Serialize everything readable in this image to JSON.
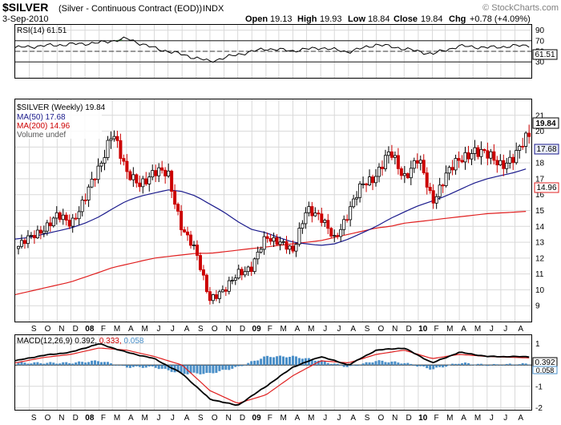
{
  "header": {
    "symbol": "$SILVER",
    "name": "(Silver - Continuous Contract (EOD))",
    "exchange": "INDX",
    "date": "3-Sep-2010",
    "watermark": "© StockCharts.com",
    "open_label": "Open",
    "open": "19.13",
    "high_label": "High",
    "high": "19.93",
    "low_label": "Low",
    "low": "18.84",
    "close_label": "Close",
    "close": "19.84",
    "chg_label": "Chg",
    "chg": "+0.78 (+4.09%)"
  },
  "rsi": {
    "label": "RSI(14) 61.51",
    "current_tag": "61.51",
    "ticks": [
      "90",
      "70",
      "50",
      "30"
    ]
  },
  "price": {
    "legend": {
      "main": "$SILVER (Weekly) 19.84",
      "ma50": "MA(50) 17.68",
      "ma200": "MA(200) 14.96",
      "volume": "Volume undef"
    },
    "tags": {
      "close": "19.84",
      "ma50": "17.68",
      "ma200": "14.96"
    },
    "x_ticks": [
      "S",
      "O",
      "N",
      "D",
      "08",
      "F",
      "M",
      "A",
      "M",
      "J",
      "J",
      "A",
      "S",
      "O",
      "N",
      "D",
      "09",
      "F",
      "M",
      "A",
      "M",
      "J",
      "J",
      "A",
      "S",
      "O",
      "N",
      "D",
      "10",
      "F",
      "M",
      "A",
      "M",
      "J",
      "J",
      "A"
    ]
  },
  "macd": {
    "label_main": "MACD(12,26,9) 0.392,",
    "label_signal": "0.333,",
    "label_hist": "0.058",
    "tags": {
      "macd": "0.392",
      "hist": "0.058"
    },
    "ticks": [
      "1",
      "0",
      "-1",
      "-2"
    ]
  },
  "colors": {
    "up": "#000000",
    "down": "#cc0000",
    "ma50": "#1a1a8c",
    "ma200": "#e02020",
    "rsi_overbought_fill": "#4f8a4f",
    "hist": "#4a8fc8",
    "signal": "#e02020",
    "macd_line": "#000000",
    "grid": "#d9d9d9",
    "tag_ma50_bg": "#e8ecf8"
  },
  "chart_data": [
    {
      "type": "line",
      "title": "RSI(14) 61.51",
      "ylim": [
        0,
        100
      ],
      "yticks": [
        30,
        50,
        70,
        90
      ],
      "x": [
        "2007-08",
        "2007-11",
        "2008-02",
        "2008-04",
        "2008-06",
        "2008-08",
        "2008-10",
        "2008-12",
        "2009-02",
        "2009-04",
        "2009-06",
        "2009-08",
        "2009-10",
        "2009-12",
        "2010-02",
        "2010-04",
        "2010-06",
        "2010-09"
      ],
      "series": [
        {
          "name": "RSI(14)",
          "values": [
            57,
            62,
            66,
            74,
            56,
            44,
            31,
            44,
            55,
            51,
            57,
            49,
            63,
            55,
            45,
            60,
            57,
            61.51
          ]
        }
      ]
    },
    {
      "type": "line",
      "title": "$SILVER (Weekly) 19.84",
      "ylim": [
        8,
        22
      ],
      "yticks": [
        9,
        10,
        11,
        12,
        13,
        14,
        15,
        16,
        17,
        18,
        19,
        20,
        21
      ],
      "x": [
        "2007-08",
        "2007-09",
        "2007-10",
        "2007-11",
        "2007-12",
        "2008-01",
        "2008-02",
        "2008-03",
        "2008-04",
        "2008-05",
        "2008-06",
        "2008-07",
        "2008-08",
        "2008-09",
        "2008-10",
        "2008-11",
        "2008-12",
        "2009-01",
        "2009-02",
        "2009-03",
        "2009-04",
        "2009-05",
        "2009-06",
        "2009-07",
        "2009-08",
        "2009-09",
        "2009-10",
        "2009-11",
        "2009-12",
        "2010-01",
        "2010-02",
        "2010-03",
        "2010-04",
        "2010-05",
        "2010-06",
        "2010-07",
        "2010-08",
        "2010-09"
      ],
      "series": [
        {
          "name": "$SILVER (Weekly)",
          "values": [
            12.6,
            13.2,
            13.9,
            14.6,
            14.2,
            15.8,
            17.6,
            20.2,
            17.2,
            16.8,
            17.3,
            17.4,
            13.8,
            12.3,
            9.5,
            9.8,
            11.2,
            11.3,
            13.4,
            13.1,
            12.3,
            15.3,
            14.4,
            13.3,
            14.8,
            16.7,
            17.3,
            18.6,
            17.2,
            18.2,
            15.6,
            17.2,
            18.1,
            18.9,
            18.4,
            18.0,
            18.3,
            19.84
          ]
        },
        {
          "name": "MA(50)",
          "values": [
            13.2,
            13.3,
            13.5,
            13.7,
            13.9,
            14.2,
            14.6,
            15.1,
            15.6,
            15.9,
            16.1,
            16.3,
            16.2,
            15.9,
            15.4,
            14.9,
            14.3,
            13.8,
            13.6,
            13.3,
            13.0,
            12.9,
            12.8,
            12.9,
            13.2,
            13.6,
            14.0,
            14.5,
            14.9,
            15.3,
            15.6,
            15.9,
            16.3,
            16.7,
            17.0,
            17.2,
            17.4,
            17.68
          ]
        },
        {
          "name": "MA(200)",
          "values": [
            9.7,
            9.9,
            10.1,
            10.3,
            10.5,
            10.8,
            11.1,
            11.4,
            11.6,
            11.8,
            12.0,
            12.1,
            12.2,
            12.3,
            12.3,
            12.4,
            12.5,
            12.6,
            12.7,
            12.8,
            12.9,
            13.0,
            13.1,
            13.3,
            13.5,
            13.7,
            13.9,
            14.0,
            14.2,
            14.3,
            14.4,
            14.5,
            14.6,
            14.7,
            14.8,
            14.85,
            14.9,
            14.96
          ]
        }
      ]
    },
    {
      "type": "line",
      "title": "MACD(12,26,9) 0.392, 0.333, 0.058",
      "ylim": [
        -2.1,
        1.4
      ],
      "yticks": [
        -2,
        -1,
        0,
        1
      ],
      "x": [
        "2007-08",
        "2007-10",
        "2007-12",
        "2008-02",
        "2008-04",
        "2008-06",
        "2008-08",
        "2008-10",
        "2008-12",
        "2009-02",
        "2009-04",
        "2009-06",
        "2009-08",
        "2009-10",
        "2009-12",
        "2010-02",
        "2010-04",
        "2010-06",
        "2010-09"
      ],
      "series": [
        {
          "name": "MACD",
          "values": [
            0.2,
            0.45,
            0.6,
            1.0,
            0.6,
            0.3,
            -0.4,
            -1.6,
            -1.9,
            -1.0,
            -0.1,
            0.4,
            0.0,
            0.7,
            0.8,
            0.1,
            0.6,
            0.4,
            0.392
          ]
        },
        {
          "name": "Signal",
          "values": [
            0.1,
            0.35,
            0.5,
            0.8,
            0.7,
            0.4,
            0.0,
            -1.2,
            -1.8,
            -1.4,
            -0.5,
            0.2,
            0.1,
            0.5,
            0.7,
            0.3,
            0.5,
            0.4,
            0.333
          ]
        },
        {
          "name": "Histogram",
          "values": [
            0.1,
            0.1,
            0.1,
            0.2,
            -0.1,
            -0.1,
            -0.4,
            -0.4,
            -0.1,
            0.4,
            0.4,
            0.2,
            -0.1,
            0.2,
            0.1,
            -0.2,
            0.1,
            0.0,
            0.058
          ]
        }
      ]
    }
  ]
}
